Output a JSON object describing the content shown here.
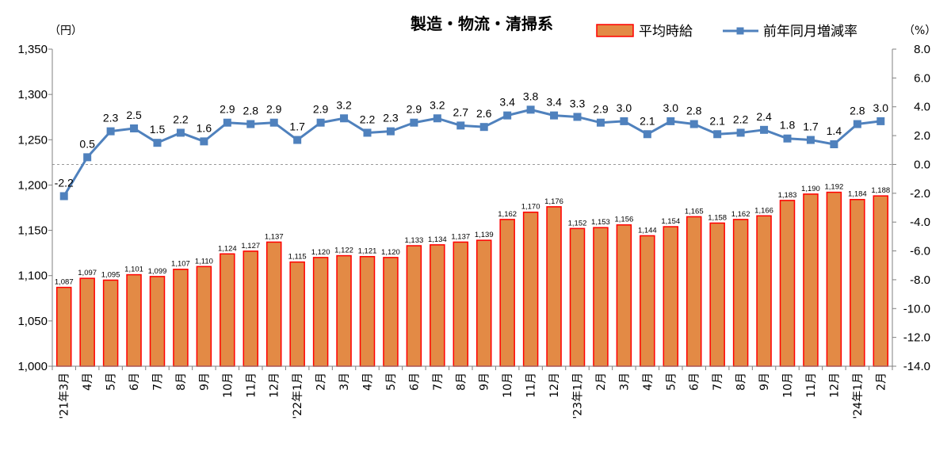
{
  "chart_data": {
    "type": "bar",
    "title": "製造・物流・清掃系",
    "left_unit": "（円）",
    "right_unit": "（%）",
    "legend": {
      "bar": "平均時給",
      "line": "前年同月増減率"
    },
    "colors": {
      "bar_fill": "#e38a45",
      "bar_stroke": "#ff0000",
      "line": "#4f81bd",
      "marker": "#4f81bd",
      "zero_line": "#999999"
    },
    "y_left": {
      "min": 1000,
      "max": 1350,
      "step": 50,
      "ticks": [
        "1,000",
        "1,050",
        "1,100",
        "1,150",
        "1,200",
        "1,250",
        "1,300",
        "1,350"
      ]
    },
    "y_right": {
      "min": -14,
      "max": 8,
      "step": 2,
      "ticks": [
        "-14.0",
        "-12.0",
        "-10.0",
        "-8.0",
        "-6.0",
        "-4.0",
        "-2.0",
        "0.0",
        "2.0",
        "4.0",
        "6.0",
        "8.0"
      ]
    },
    "categories": [
      "'21年3月",
      "4月",
      "5月",
      "6月",
      "7月",
      "8月",
      "9月",
      "10月",
      "11月",
      "12月",
      "'22年1月",
      "2月",
      "3月",
      "4月",
      "5月",
      "6月",
      "7月",
      "8月",
      "9月",
      "10月",
      "11月",
      "12月",
      "'23年1月",
      "2月",
      "3月",
      "4月",
      "5月",
      "6月",
      "7月",
      "8月",
      "9月",
      "10月",
      "11月",
      "12月",
      "'24年1月",
      "2月"
    ],
    "series": [
      {
        "name": "平均時給",
        "type": "bar",
        "axis": "left",
        "values": [
          1087,
          1097,
          1095,
          1101,
          1099,
          1107,
          1110,
          1124,
          1127,
          1137,
          1115,
          1120,
          1122,
          1121,
          1120,
          1133,
          1134,
          1137,
          1139,
          1162,
          1170,
          1176,
          1152,
          1153,
          1156,
          1144,
          1154,
          1165,
          1158,
          1162,
          1166,
          1183,
          1190,
          1192,
          1184,
          1188
        ],
        "labels": [
          "1,087",
          "1,097",
          "1,095",
          "1,101",
          "1,099",
          "1,107",
          "1,110",
          "1,124",
          "1,127",
          "1,137",
          "1,115",
          "1,120",
          "1,122",
          "1,121",
          "1,120",
          "1,133",
          "1,134",
          "1,137",
          "1,139",
          "1,162",
          "1,170",
          "1,176",
          "1,152",
          "1,153",
          "1,156",
          "1,144",
          "1,154",
          "1,165",
          "1,158",
          "1,162",
          "1,166",
          "1,183",
          "1,190",
          "1,192",
          "1,184",
          "1,188"
        ]
      },
      {
        "name": "前年同月増減率",
        "type": "line",
        "axis": "right",
        "values": [
          -2.2,
          0.5,
          2.3,
          2.5,
          1.5,
          2.2,
          1.6,
          2.9,
          2.8,
          2.9,
          1.7,
          2.9,
          3.2,
          2.2,
          2.3,
          2.9,
          3.2,
          2.7,
          2.6,
          3.4,
          3.8,
          3.4,
          3.3,
          2.9,
          3.0,
          2.1,
          3.0,
          2.8,
          2.1,
          2.2,
          2.4,
          1.8,
          1.7,
          1.4,
          2.8,
          3.0
        ],
        "labels": [
          "-2.2",
          "0.5",
          "2.3",
          "2.5",
          "1.5",
          "2.2",
          "1.6",
          "2.9",
          "2.8",
          "2.9",
          "1.7",
          "2.9",
          "3.2",
          "2.2",
          "2.3",
          "2.9",
          "3.2",
          "2.7",
          "2.6",
          "3.4",
          "3.8",
          "3.4",
          "3.3",
          "2.9",
          "3.0",
          "2.1",
          "3.0",
          "2.8",
          "2.1",
          "2.2",
          "2.4",
          "1.8",
          "1.7",
          "1.4",
          "2.8",
          "3.0"
        ]
      }
    ],
    "grid": false,
    "legend_position": "top-right"
  }
}
